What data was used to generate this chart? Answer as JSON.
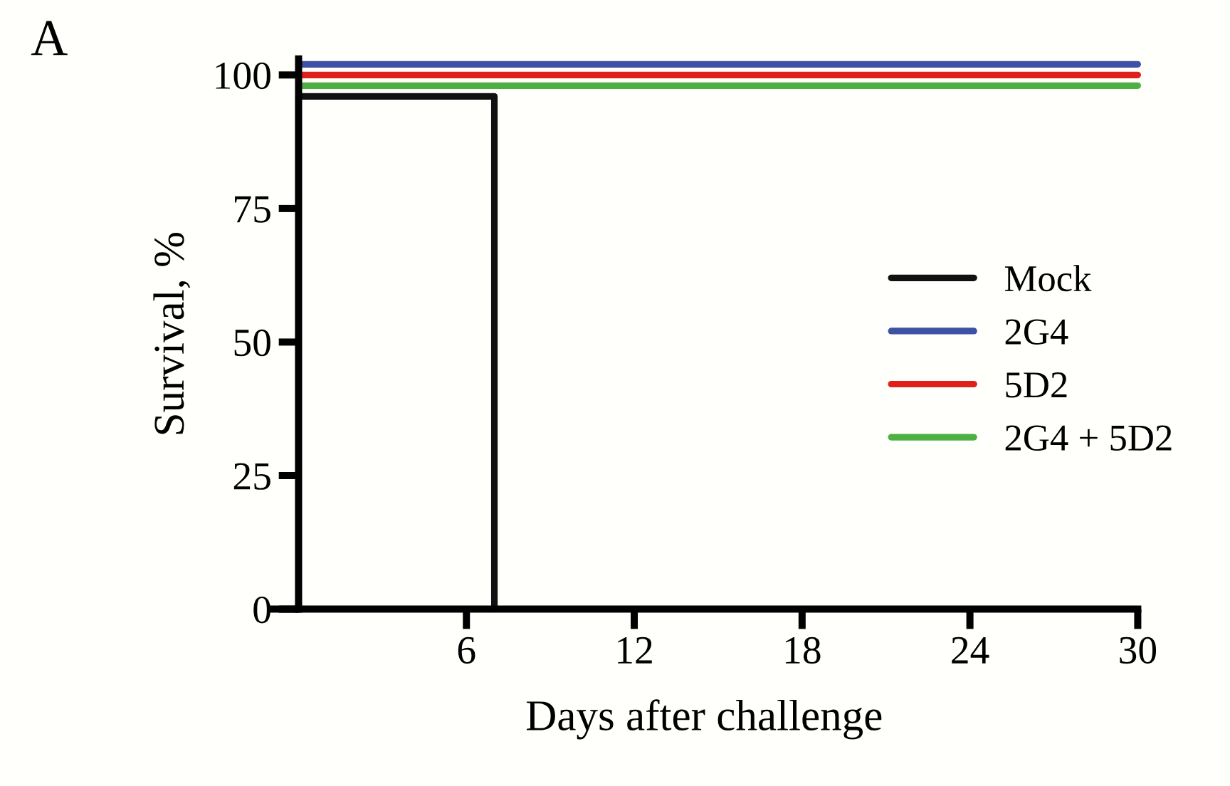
{
  "chart_data": {
    "type": "line",
    "xlabel": "Days after challenge",
    "ylabel": "Survival, %",
    "annotations": [
      "A"
    ],
    "xlim": [
      -1,
      30
    ],
    "xticks": [
      6,
      12,
      18,
      24,
      30
    ],
    "ylim": [
      0,
      103
    ],
    "yticks": [
      0,
      25,
      50,
      75,
      100
    ],
    "grid": false,
    "legend": "right",
    "marker": "none",
    "line_style": "solid",
    "series": [
      {
        "name": "Mock",
        "color": "#111111",
        "x": [
          0,
          0,
          7,
          7
        ],
        "values": [
          0,
          96,
          96,
          0
        ]
      },
      {
        "name": "2G4",
        "color": "#3f51a3",
        "x": [
          0,
          30
        ],
        "values": [
          102,
          102
        ]
      },
      {
        "name": "5D2",
        "color": "#e0201b",
        "x": [
          0,
          30
        ],
        "values": [
          100,
          100
        ]
      },
      {
        "name": "2G4 + 5D2",
        "color": "#4db042",
        "x": [
          0,
          30
        ],
        "values": [
          98,
          98
        ]
      }
    ]
  }
}
